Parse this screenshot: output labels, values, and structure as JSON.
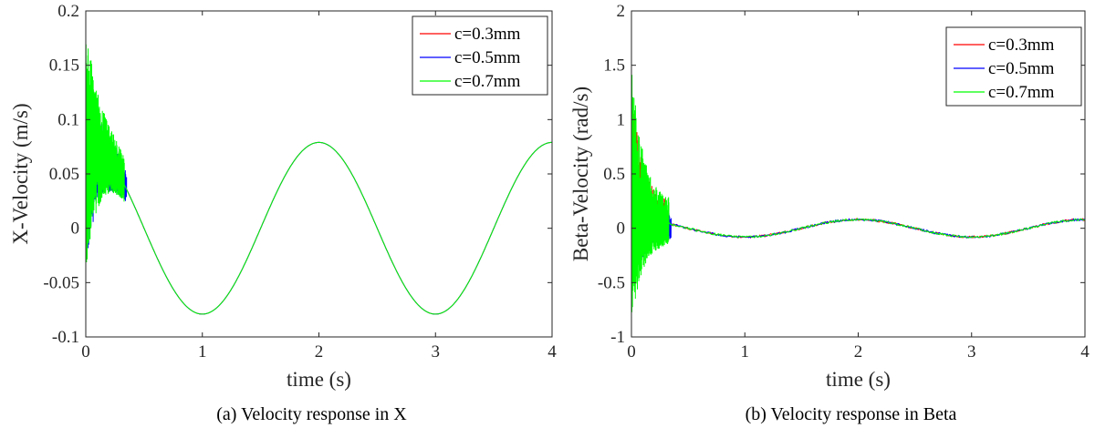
{
  "chart_data": [
    {
      "type": "line",
      "caption": "(a) Velocity response in X",
      "xlabel": "time (s)",
      "ylabel": "X-Velocity (m/s)",
      "xlim": [
        0,
        4
      ],
      "ylim": [
        -0.1,
        0.2
      ],
      "xticks": [
        0,
        1,
        2,
        3,
        4
      ],
      "yticks": [
        -0.1,
        -0.05,
        0,
        0.05,
        0.1,
        0.15,
        0.2
      ],
      "xtick_labels": [
        "0",
        "1",
        "2",
        "3",
        "4"
      ],
      "ytick_labels": [
        "-0.1",
        "-0.05",
        "0",
        "0.05",
        "0.1",
        "0.15",
        "0.2"
      ],
      "grid": false,
      "legend_position": "top-right",
      "steady_state": {
        "form": "sinusoid",
        "amplitude": 0.079,
        "period": 2.0,
        "offset": 0,
        "start_time": 0.35,
        "phase_note": "peaks at t=0,2,4; troughs at t=1,3"
      },
      "series": [
        {
          "name": "c=0.3mm",
          "color": "#ff0000",
          "transient": {
            "t_end": 0.3,
            "values_range": [
              0.03,
              0.12
            ]
          }
        },
        {
          "name": "c=0.5mm",
          "color": "#0000ff",
          "transient": {
            "t_end": 0.35,
            "values_range": [
              -0.035,
              0.15
            ]
          }
        },
        {
          "name": "c=0.7mm",
          "color": "#00ff00",
          "transient": {
            "t_end": 0.33,
            "values_range": [
              -0.045,
              0.19
            ]
          }
        }
      ]
    },
    {
      "type": "line",
      "caption": "(b) Velocity response in Beta",
      "xlabel": "time (s)",
      "ylabel": "Beta-Velocity (rad/s)",
      "xlim": [
        0,
        4
      ],
      "ylim": [
        -1,
        2
      ],
      "xticks": [
        0,
        1,
        2,
        3,
        4
      ],
      "yticks": [
        -1,
        -0.5,
        0,
        0.5,
        1,
        1.5,
        2
      ],
      "xtick_labels": [
        "0",
        "1",
        "2",
        "3",
        "4"
      ],
      "ytick_labels": [
        "-1",
        "-0.5",
        "0",
        "0.5",
        "1",
        "1.5",
        "2"
      ],
      "grid": false,
      "legend_position": "top-right",
      "steady_state": {
        "form": "sinusoid",
        "amplitude": 0.08,
        "period": 2.0,
        "offset": 0,
        "start_time": 0.35,
        "phase_note": "peaks at t=0,2,4; troughs at t=1,3"
      },
      "series": [
        {
          "name": "c=0.3mm",
          "color": "#ff0000",
          "transient": {
            "t_end": 0.3,
            "values_range": [
              -0.5,
              1.4
            ]
          }
        },
        {
          "name": "c=0.5mm",
          "color": "#0000ff",
          "transient": {
            "t_end": 0.35,
            "values_range": [
              -0.6,
              0.7
            ]
          }
        },
        {
          "name": "c=0.7mm",
          "color": "#00ff00",
          "transient": {
            "t_end": 0.33,
            "values_range": [
              -0.88,
              1.5
            ]
          }
        }
      ]
    }
  ]
}
